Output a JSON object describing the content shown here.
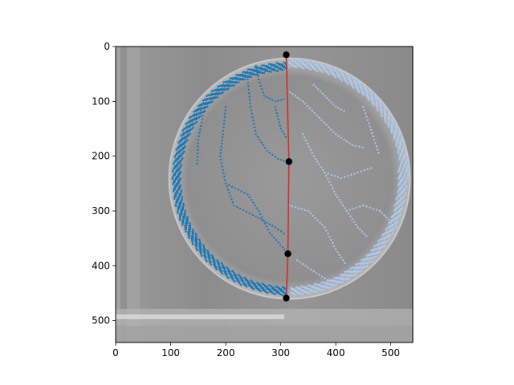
{
  "chart_data": {
    "type": "scatter",
    "title": "",
    "xlabel": "",
    "ylabel": "",
    "xlim": [
      0,
      540
    ],
    "ylim": [
      540,
      0
    ],
    "y_inverted": true,
    "grid": false,
    "legend": "none",
    "background": "grayscale photograph of a circular dish",
    "x_ticks": [
      "0",
      "100",
      "200",
      "300",
      "400",
      "500"
    ],
    "y_ticks": [
      "0",
      "100",
      "200",
      "300",
      "400",
      "500"
    ],
    "colors": {
      "left_points": "#1f77b4",
      "right_points": "#aec7e8",
      "line": "#d62728",
      "markers": "#000000"
    },
    "circle": {
      "cx": 316,
      "cy": 241,
      "r": 213
    },
    "line": {
      "name": "dividing line",
      "x": [
        310,
        315,
        313,
        310
      ],
      "y": [
        15,
        210,
        378,
        459
      ]
    },
    "markers": {
      "x": [
        310,
        315,
        313,
        310
      ],
      "y": [
        15,
        210,
        378,
        459
      ]
    },
    "series": [
      {
        "side": "left",
        "color": "#1f77b4",
        "paths": [
          [
            [
              240,
              60
            ],
            [
              245,
              110
            ],
            [
              255,
              160
            ],
            [
              275,
              190
            ],
            [
              295,
              205
            ],
            [
              311,
              210
            ]
          ],
          [
            [
              200,
              110
            ],
            [
              195,
              160
            ],
            [
              190,
              200
            ],
            [
              200,
              250
            ],
            [
              215,
              290
            ]
          ],
          [
            [
              160,
              120
            ],
            [
              150,
              170
            ],
            [
              148,
              220
            ]
          ],
          [
            [
              215,
              290
            ],
            [
              255,
              310
            ],
            [
              290,
              330
            ],
            [
              311,
              345
            ]
          ],
          [
            [
              290,
              110
            ],
            [
              300,
              150
            ],
            [
              312,
              170
            ]
          ],
          [
            [
              200,
              250
            ],
            [
              240,
              270
            ],
            [
              260,
              300
            ],
            [
              280,
              340
            ],
            [
              311,
              375
            ]
          ],
          [
            [
              255,
              35
            ],
            [
              260,
              60
            ],
            [
              270,
              90
            ],
            [
              290,
              100
            ],
            [
              311,
              95
            ]
          ]
        ]
      },
      {
        "side": "right",
        "color": "#aec7e8",
        "paths": [
          [
            [
              312,
              80
            ],
            [
              340,
              100
            ],
            [
              370,
              130
            ],
            [
              400,
              160
            ],
            [
              430,
              180
            ],
            [
              455,
              185
            ]
          ],
          [
            [
              340,
              160
            ],
            [
              360,
              200
            ],
            [
              380,
              230
            ],
            [
              410,
              240
            ],
            [
              440,
              230
            ],
            [
              470,
              220
            ]
          ],
          [
            [
              380,
              230
            ],
            [
              400,
              270
            ],
            [
              420,
              300
            ],
            [
              440,
              330
            ],
            [
              460,
              350
            ]
          ],
          [
            [
              315,
              290
            ],
            [
              350,
              300
            ],
            [
              380,
              330
            ],
            [
              400,
              370
            ],
            [
              420,
              400
            ]
          ],
          [
            [
              420,
              300
            ],
            [
              450,
              290
            ],
            [
              480,
              300
            ],
            [
              500,
              320
            ]
          ],
          [
            [
              360,
              70
            ],
            [
              380,
              90
            ],
            [
              400,
              110
            ],
            [
              420,
              120
            ]
          ],
          [
            [
              330,
              390
            ],
            [
              360,
              410
            ],
            [
              390,
              430
            ]
          ],
          [
            [
              450,
              110
            ],
            [
              460,
              140
            ],
            [
              470,
              170
            ],
            [
              480,
              200
            ]
          ]
        ]
      }
    ]
  }
}
